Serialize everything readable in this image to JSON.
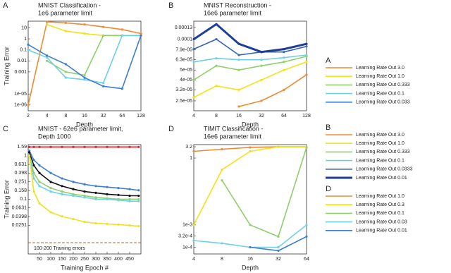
{
  "chart_data": [
    {
      "type": "line",
      "panel": "A",
      "title": [
        "MNIST Classification -",
        "1e6 parameter limit"
      ],
      "x_label": "Depth",
      "y_label": "Training Error",
      "ylog": true,
      "categories": [
        2,
        4,
        8,
        16,
        32,
        64,
        128
      ],
      "ylim": [
        3e-07,
        40
      ],
      "yticks": [
        10,
        1,
        0.1,
        0.01,
        0.001,
        {
          "value": 1e-05,
          "label": "1e-05"
        },
        {
          "value": 1e-06,
          "label": "1e-06"
        }
      ],
      "series": [
        {
          "name": "Learning Rate Out 3.0",
          "color": "#f08a30",
          "values": [
            1e-06,
            35,
            28,
            20,
            12,
            7,
            3
          ]
        },
        {
          "name": "Learning Rate Out 1.0",
          "color": "#f2e21a",
          "values": [
            null,
            20,
            5,
            3,
            2,
            2,
            2
          ]
        },
        {
          "name": "Learning Rate Out 0.333",
          "color": "#8fcf6c",
          "values": [
            null,
            0.01,
            0.001,
            0.0005,
            2,
            2,
            2
          ]
        },
        {
          "name": "Learning Rate Out 0.1",
          "color": "#6fcfe6",
          "values": [
            0.1,
            0.02,
            0.0003,
            0.0002,
            0.0001,
            2,
            2
          ]
        },
        {
          "name": "Learning Rate Out 0.033",
          "color": "#3f7fcf",
          "values": [
            0.3,
            0.03,
            0.005,
            0.0003,
            5e-05,
            3e-05,
            2
          ]
        }
      ]
    },
    {
      "type": "line",
      "panel": "B",
      "title": [
        "MNIST Reconstruction -",
        "16e6 parameter limit"
      ],
      "x_label": "Depth",
      "ylog": true,
      "categories": [
        4,
        8,
        16,
        32,
        64,
        128
      ],
      "ylim": [
        2e-05,
        0.00015
      ],
      "yticks": [
        0.00013,
        0.0001,
        {
          "value": 7.9e-05,
          "label": "7.9e-05"
        },
        {
          "value": 6.3e-05,
          "label": "6.3e-05"
        },
        {
          "value": 5e-05,
          "label": "5e-05"
        },
        {
          "value": 4e-05,
          "label": "4e-05"
        },
        {
          "value": 3.2e-05,
          "label": "3.2e-05"
        },
        {
          "value": 2.5e-05,
          "label": "2.5e-05"
        }
      ],
      "series": [
        {
          "name": "Learning Rate Out 3.0",
          "color": "#f08a30",
          "values": [
            null,
            null,
            2.2e-05,
            2.5e-05,
            3.2e-05,
            4.5e-05
          ]
        },
        {
          "name": "Learning Rate Out 1.0",
          "color": "#f2e21a",
          "values": [
            2.7e-05,
            3.5e-05,
            3.2e-05,
            4e-05,
            5e-05,
            6e-05
          ]
        },
        {
          "name": "Learning Rate Out 0.333",
          "color": "#8fcf6c",
          "values": [
            4e-05,
            5.5e-05,
            5e-05,
            5.5e-05,
            6e-05,
            6.8e-05
          ]
        },
        {
          "name": "Learning Rate Out 0.1",
          "color": "#6fcfe6",
          "values": [
            6e-05,
            6.5e-05,
            6.3e-05,
            6.3e-05,
            6.6e-05,
            7e-05
          ]
        },
        {
          "name": "Learning Rate Out 0.0333",
          "color": "#3a66b8",
          "values": [
            8e-05,
            0.0001,
            7e-05,
            7.5e-05,
            7.5e-05,
            8.5e-05
          ]
        },
        {
          "name": "Learning Rate Out 0.01",
          "color": "#1d3f9a",
          "line_width": 3,
          "values": [
            0.0001,
            0.00014,
            9e-05,
            7.5e-05,
            8e-05,
            9e-05
          ]
        }
      ]
    },
    {
      "type": "line",
      "panel": "C",
      "title": [
        "MNIST - 62e6 parameter limit,",
        "Depth 1000"
      ],
      "x_label": "Training Epoch #",
      "y_label": "Training Error",
      "ylog": true,
      "x": [
        5,
        25,
        50,
        100,
        150,
        200,
        250,
        300,
        350,
        400,
        450,
        490
      ],
      "xlim": [
        0,
        500
      ],
      "xticks": [
        50,
        100,
        150,
        200,
        250,
        300,
        350,
        400,
        450
      ],
      "ylim": [
        0.0055,
        1.8
      ],
      "yticks": [
        1.59,
        1,
        0.631,
        0.398,
        0.251,
        0.158,
        0.1,
        0.0631,
        0.0398,
        0.0251
      ],
      "annotation": {
        "text": "100-200 Training errors",
        "value": 0.01,
        "color": "#a0703a"
      },
      "series": [
        {
          "color": "#e8202a",
          "values": [
            1.59,
            1.59,
            1.59,
            1.59,
            1.59,
            1.59,
            1.59,
            1.59,
            1.59,
            1.59,
            1.59,
            1.59
          ]
        },
        {
          "color": "#3f7fcf",
          "values": [
            1.3,
            0.8,
            0.6,
            0.4,
            0.3,
            0.25,
            0.22,
            0.2,
            0.19,
            0.18,
            0.17,
            0.16
          ]
        },
        {
          "color": "#8fcf6c",
          "values": [
            1,
            0.4,
            0.25,
            0.18,
            0.15,
            0.13,
            0.12,
            0.11,
            0.105,
            0.1,
            0.1,
            0.1
          ]
        },
        {
          "color": "#6fcfe6",
          "values": [
            1,
            0.3,
            0.2,
            0.15,
            0.13,
            0.12,
            0.11,
            0.1,
            0.1,
            0.095,
            0.09,
            0.09
          ]
        },
        {
          "color": "#111111",
          "values": [
            1.2,
            0.6,
            0.4,
            0.25,
            0.2,
            0.17,
            0.15,
            0.14,
            0.13,
            0.125,
            0.12,
            0.12
          ]
        },
        {
          "color": "#f2e21a",
          "values": [
            1,
            0.15,
            0.08,
            0.05,
            0.04,
            0.035,
            0.03,
            0.028,
            0.027,
            0.026,
            0.025,
            0.024
          ]
        }
      ]
    },
    {
      "type": "line",
      "panel": "D",
      "title": [
        "TIMIT Classification -",
        "16e6 parameter limit"
      ],
      "x_label": "Depth",
      "ylog": true,
      "categories": [
        4,
        8,
        16,
        32,
        64
      ],
      "ylim": [
        5e-05,
        4
      ],
      "yticks": [
        3.2,
        1,
        {
          "value": 0.001,
          "label": "1e-3"
        },
        {
          "value": 0.00032,
          "label": "3.2e-4"
        },
        {
          "value": 0.0001,
          "label": "1e-4"
        }
      ],
      "series": [
        {
          "name": "Learning Rate Out 1.0",
          "color": "#f08a30",
          "values": [
            2,
            2.5,
            3,
            3.2,
            3.2
          ]
        },
        {
          "name": "Learning Rate Out 0.3",
          "color": "#f2e21a",
          "values": [
            0.001,
            0.3,
            2,
            3.2,
            3.2
          ]
        },
        {
          "name": "Learning Rate Out 0.1",
          "color": "#8fcf6c",
          "values": [
            null,
            0.1,
            0.001,
            0.0003,
            3
          ]
        },
        {
          "name": "Learning Rate Out 0.03",
          "color": "#6fcfe6",
          "values": [
            0.0002,
            0.00015,
            0.0001,
            0.0001,
            0.001
          ]
        },
        {
          "name": "Learning Rate Out 0.01",
          "color": "#3f7fcf",
          "values": [
            null,
            null,
            0.0001,
            7e-05,
            0.0003
          ]
        }
      ]
    }
  ]
}
